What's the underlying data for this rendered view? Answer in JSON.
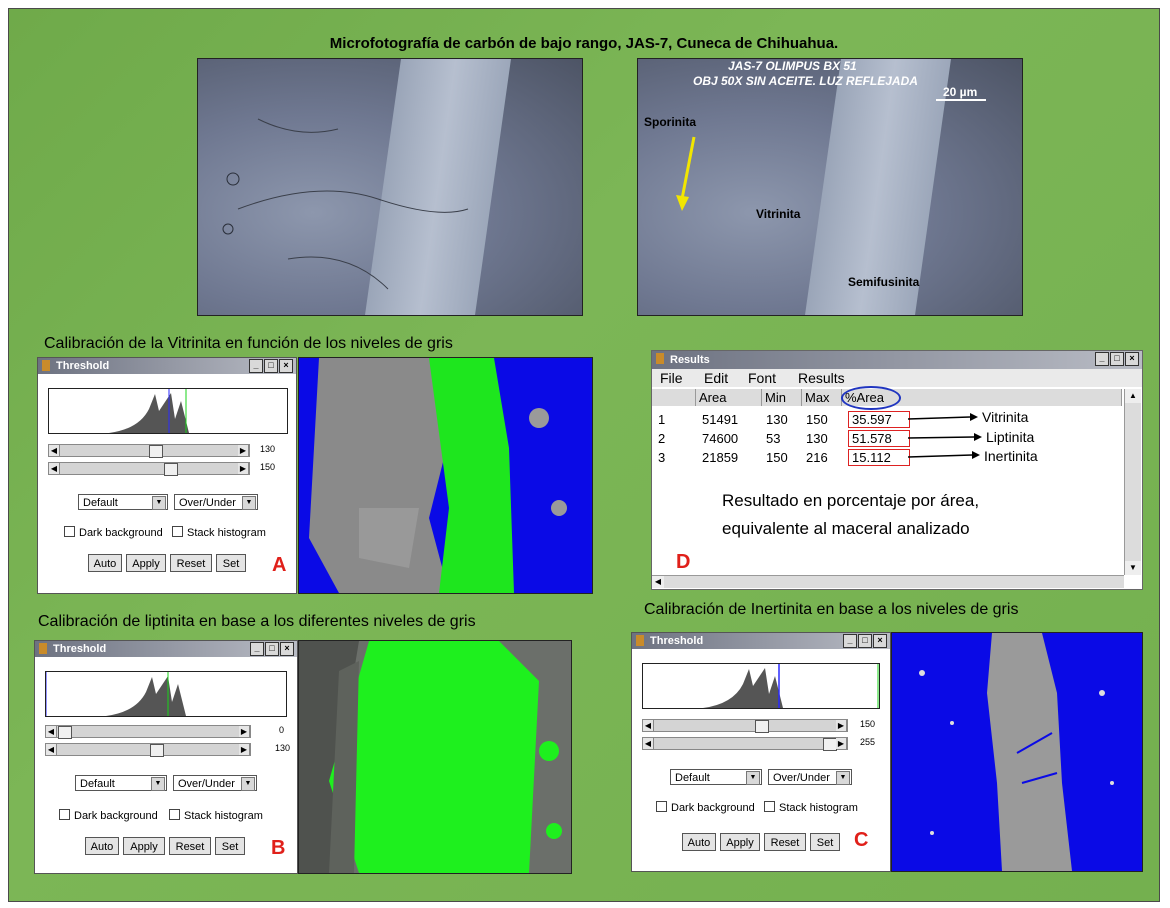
{
  "title": "Microfotografía de carbón  de bajo rango, JAS-7, Cuneca de Chihuahua.",
  "micro_right": {
    "header1": "JAS-7 OLIMPUS BX 51",
    "header2": "OBJ 50X SIN ACEITE. LUZ REFLEJADA",
    "scale": "20 µm",
    "labels": {
      "sporinita": "Sporinita",
      "vitrinita": "Vitrinita",
      "semifusinita": "Semifusinita"
    }
  },
  "captions": {
    "a": "Calibración de la Vitrinita en función de los niveles de gris",
    "b": "Calibración de liptinita en base a los diferentes niveles de gris",
    "c": "Calibración de Inertinita en base a los niveles de gris"
  },
  "threshold": {
    "title": "Threshold",
    "method": "Default",
    "mode": "Over/Under",
    "dark_bg": "Dark background",
    "stack": "Stack histogram",
    "buttons": {
      "auto": "Auto",
      "apply": "Apply",
      "reset": "Reset",
      "set": "Set"
    }
  },
  "panels": {
    "a": {
      "letter": "A",
      "min": "130",
      "max": "150",
      "min_level": 0.51,
      "max_level": 0.59
    },
    "b": {
      "letter": "B",
      "min": "0",
      "max": "130",
      "min_level": 0.0,
      "max_level": 0.51
    },
    "c": {
      "letter": "C",
      "min": "150",
      "max": "255",
      "min_level": 0.59,
      "max_level": 1.0
    }
  },
  "results": {
    "title": "Results",
    "menu": [
      "File",
      "Edit",
      "Font",
      "Results"
    ],
    "columns": [
      "",
      "Area",
      "Min",
      "Max",
      "%Area"
    ],
    "rows": [
      {
        "n": "1",
        "area": "51491",
        "min": "130",
        "max": "150",
        "pct": "35.597",
        "label": "Vitrinita"
      },
      {
        "n": "2",
        "area": "74600",
        "min": "53",
        "max": "130",
        "pct": "51.578",
        "label": "Liptinita"
      },
      {
        "n": "3",
        "area": "21859",
        "min": "150",
        "max": "216",
        "pct": "15.112",
        "label": "Inertinita"
      }
    ],
    "note1": "Resultado en porcentaje por área,",
    "note2": "equivalente al  maceral analizado",
    "letter": "D"
  },
  "colors": {
    "green_bg": "#74b04f",
    "blue": "#0a0ae6",
    "green": "#18f018",
    "red": "#e0201a"
  }
}
